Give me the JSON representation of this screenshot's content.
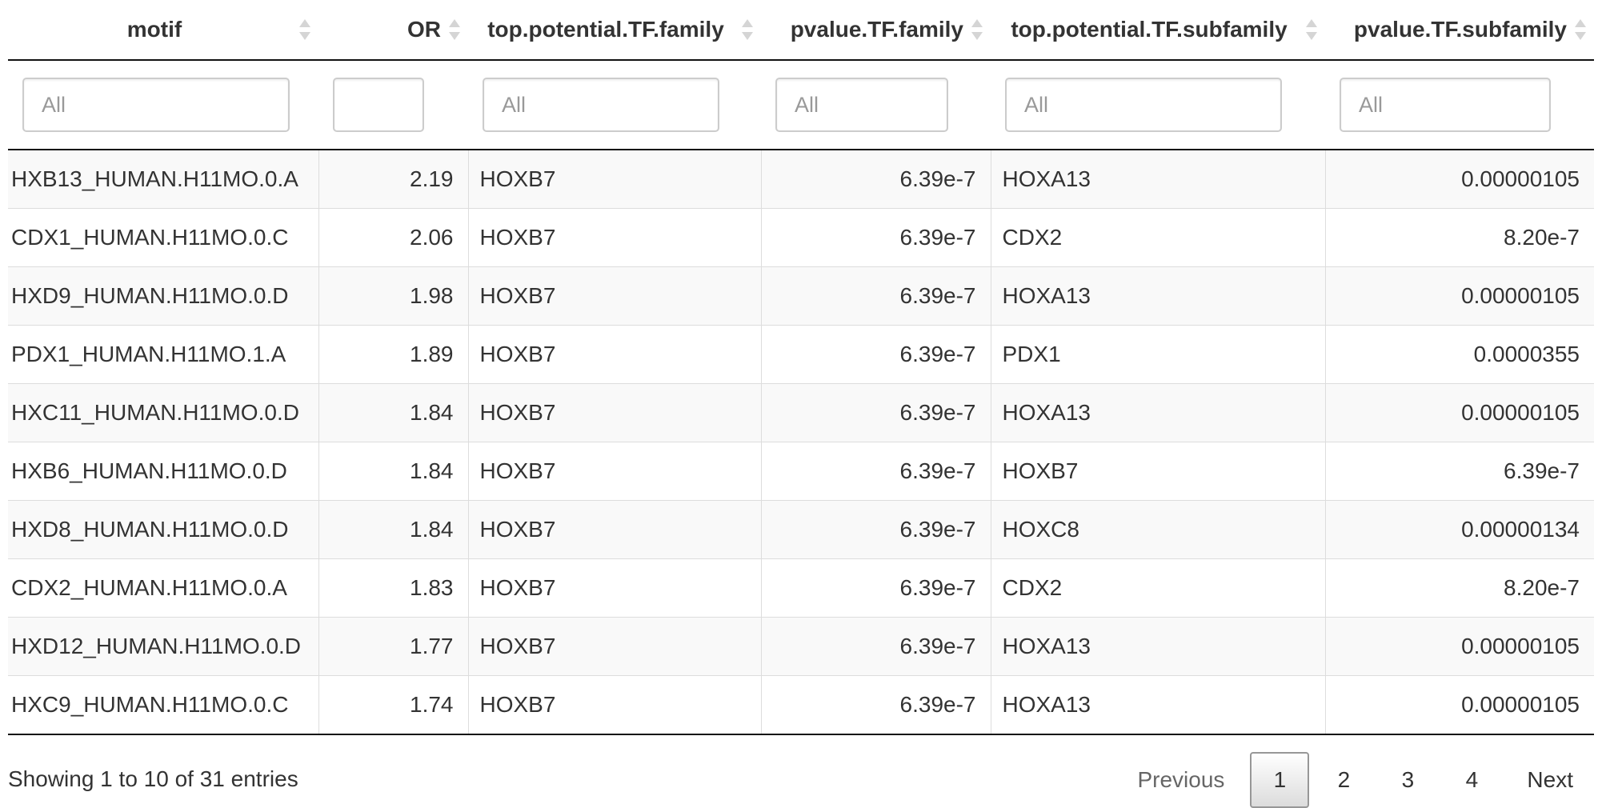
{
  "columns": [
    {
      "key": "motif",
      "label": "motif"
    },
    {
      "key": "or",
      "label": "OR"
    },
    {
      "key": "top_family",
      "label": "top.potential.TF.family"
    },
    {
      "key": "pvalue_family",
      "label": "pvalue.TF.family"
    },
    {
      "key": "top_subfamily",
      "label": "top.potential.TF.subfamily"
    },
    {
      "key": "pvalue_subfamily",
      "label": "pvalue.TF.subfamily"
    }
  ],
  "filters": {
    "placeholder": "All",
    "or_value": ""
  },
  "rows": [
    {
      "motif": "HXB13_HUMAN.H11MO.0.A",
      "or": "2.19",
      "top_family": "HOXB7",
      "pvalue_family": "6.39e-7",
      "top_subfamily": "HOXA13",
      "pvalue_subfamily": "0.00000105"
    },
    {
      "motif": "CDX1_HUMAN.H11MO.0.C",
      "or": "2.06",
      "top_family": "HOXB7",
      "pvalue_family": "6.39e-7",
      "top_subfamily": "CDX2",
      "pvalue_subfamily": "8.20e-7"
    },
    {
      "motif": "HXD9_HUMAN.H11MO.0.D",
      "or": "1.98",
      "top_family": "HOXB7",
      "pvalue_family": "6.39e-7",
      "top_subfamily": "HOXA13",
      "pvalue_subfamily": "0.00000105"
    },
    {
      "motif": "PDX1_HUMAN.H11MO.1.A",
      "or": "1.89",
      "top_family": "HOXB7",
      "pvalue_family": "6.39e-7",
      "top_subfamily": "PDX1",
      "pvalue_subfamily": "0.0000355"
    },
    {
      "motif": "HXC11_HUMAN.H11MO.0.D",
      "or": "1.84",
      "top_family": "HOXB7",
      "pvalue_family": "6.39e-7",
      "top_subfamily": "HOXA13",
      "pvalue_subfamily": "0.00000105"
    },
    {
      "motif": "HXB6_HUMAN.H11MO.0.D",
      "or": "1.84",
      "top_family": "HOXB7",
      "pvalue_family": "6.39e-7",
      "top_subfamily": "HOXB7",
      "pvalue_subfamily": "6.39e-7"
    },
    {
      "motif": "HXD8_HUMAN.H11MO.0.D",
      "or": "1.84",
      "top_family": "HOXB7",
      "pvalue_family": "6.39e-7",
      "top_subfamily": "HOXC8",
      "pvalue_subfamily": "0.00000134"
    },
    {
      "motif": "CDX2_HUMAN.H11MO.0.A",
      "or": "1.83",
      "top_family": "HOXB7",
      "pvalue_family": "6.39e-7",
      "top_subfamily": "CDX2",
      "pvalue_subfamily": "8.20e-7"
    },
    {
      "motif": "HXD12_HUMAN.H11MO.0.D",
      "or": "1.77",
      "top_family": "HOXB7",
      "pvalue_family": "6.39e-7",
      "top_subfamily": "HOXA13",
      "pvalue_subfamily": "0.00000105"
    },
    {
      "motif": "HXC9_HUMAN.H11MO.0.C",
      "or": "1.74",
      "top_family": "HOXB7",
      "pvalue_family": "6.39e-7",
      "top_subfamily": "HOXA13",
      "pvalue_subfamily": "0.00000105"
    }
  ],
  "footer": {
    "info": "Showing 1 to 10 of 31 entries"
  },
  "pagination": {
    "previous": "Previous",
    "pages": [
      "1",
      "2",
      "3",
      "4"
    ],
    "current_page": "1",
    "next": "Next"
  },
  "icons": {
    "sort": "sort-both-icon"
  },
  "colors": {
    "border_dark": "#111111",
    "row_stripe": "#f9f9f9",
    "sort_arrow": "#d5d5d5"
  }
}
